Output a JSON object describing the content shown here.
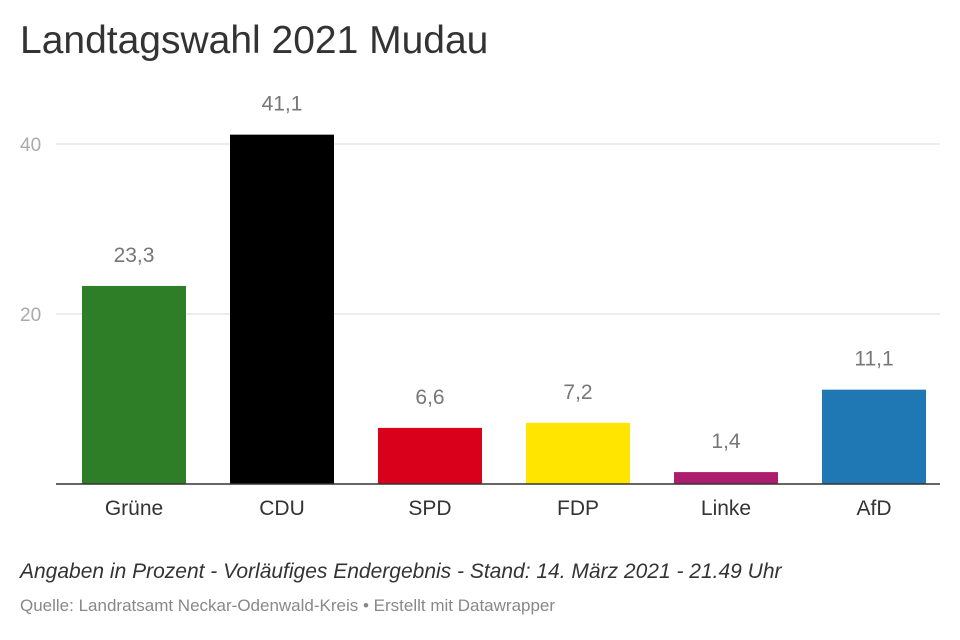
{
  "chart_data": {
    "type": "bar",
    "title": "Landtagswahl 2021 Mudau",
    "categories": [
      "Grüne",
      "CDU",
      "SPD",
      "FDP",
      "Linke",
      "AfD"
    ],
    "values": [
      23.3,
      41.1,
      6.6,
      7.2,
      1.4,
      11.1
    ],
    "value_labels": [
      "23,3",
      "41,1",
      "6,6",
      "7,2",
      "1,4",
      "11,1"
    ],
    "colors": [
      "#2e7d27",
      "#000000",
      "#d9001c",
      "#ffe500",
      "#ad1d6e",
      "#1f77b4"
    ],
    "yticks": [
      20,
      40
    ],
    "ylim": [
      0,
      45
    ],
    "grid": true,
    "legend": "none",
    "xlabel": "",
    "ylabel": ""
  },
  "notes": "Angaben in Prozent - Vorläufiges Endergebnis - Stand: 14. März 2021 - 21.49 Uhr",
  "source": "Quelle: Landratsamt Neckar-Odenwald-Kreis • Erstellt mit Datawrapper"
}
